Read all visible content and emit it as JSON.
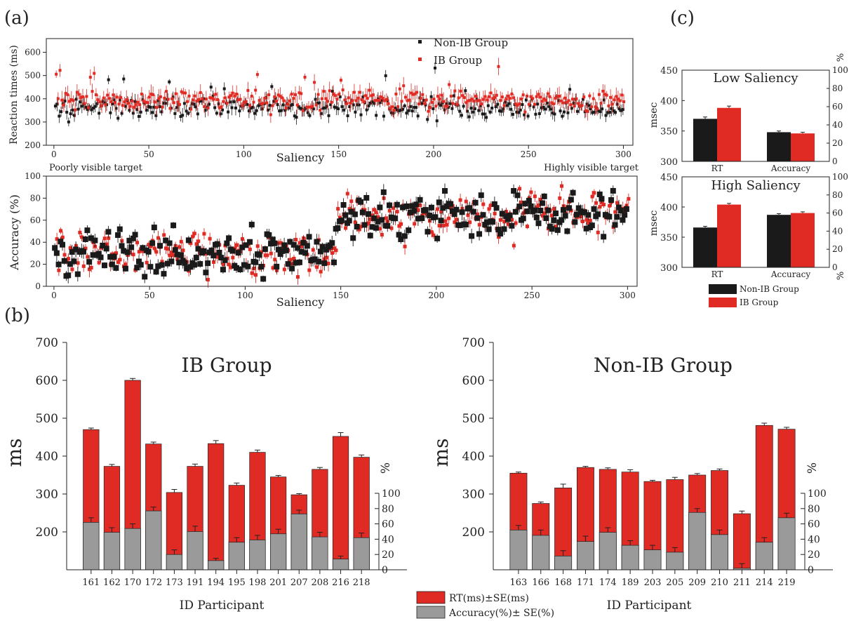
{
  "panel_labels": {
    "a": "(a)",
    "b": "(b)",
    "c": "(c)"
  },
  "colors": {
    "ib": "#e02b25",
    "non_ib": "#1a1a1a",
    "accuracy": "#9a9a9a",
    "rt": "#e02b25",
    "axis": "#222222"
  },
  "chart_data": [
    {
      "id": "a-top",
      "type": "scatter",
      "xlabel": "Saliency",
      "ylabel": "Reaction times (ms)",
      "xlim": [
        0,
        300
      ],
      "ylim": [
        200,
        650
      ],
      "xticks": [
        0,
        50,
        100,
        150,
        200,
        250,
        300
      ],
      "yticks": [
        200,
        300,
        400,
        500,
        600
      ],
      "annotations": {
        "left": "Poorly visible target",
        "right": "Highly visible target"
      },
      "legend": {
        "placement": "top-center",
        "entries": [
          "Non-IB Group",
          "IB Group"
        ]
      },
      "series": [
        {
          "name": "Non-IB Group",
          "color": "#1a1a1a",
          "n_points": 300,
          "mean": 365,
          "spread": 40,
          "err": 22
        },
        {
          "name": "IB Group",
          "color": "#e02b25",
          "n_points": 300,
          "mean": 395,
          "spread": 40,
          "err": 28
        }
      ]
    },
    {
      "id": "a-bottom",
      "type": "scatter",
      "xlabel": "Saliency",
      "ylabel": "Accuracy (%)",
      "xlim": [
        0,
        300
      ],
      "ylim": [
        0,
        100
      ],
      "xticks": [
        0,
        50,
        100,
        150,
        200,
        250,
        300
      ],
      "yticks": [
        0,
        20,
        40,
        60,
        80,
        100
      ],
      "series": [
        {
          "name": "Non-IB Group",
          "color": "#1a1a1a",
          "n_points": 300,
          "mean_low": 30,
          "mean_high": 62,
          "breakpoint": 148,
          "spread": 14,
          "err": 5
        },
        {
          "name": "IB Group",
          "color": "#e02b25",
          "n_points": 300,
          "mean_low": 30,
          "mean_high": 62,
          "breakpoint": 148,
          "spread": 14,
          "err": 5
        }
      ]
    },
    {
      "id": "b-left",
      "type": "bar",
      "title": "IB Group",
      "xlabel": "ID Participant",
      "ylabel": "ms",
      "ylabel_right": "%",
      "ylim": [
        100,
        700
      ],
      "yticks": [
        200,
        300,
        400,
        500,
        600,
        700
      ],
      "ylim_right": [
        0,
        200
      ],
      "yticks_right": [
        0,
        20,
        40,
        60,
        80,
        100
      ],
      "categories": [
        "161",
        "162",
        "170",
        "172",
        "173",
        "191",
        "194",
        "195",
        "198",
        "201",
        "207",
        "208",
        "216",
        "218"
      ],
      "series": [
        {
          "name": "RT(ms)±SE(ms)",
          "values": [
            470,
            373,
            600,
            432,
            304,
            373,
            433,
            323,
            410,
            345,
            298,
            365,
            452,
            397
          ],
          "errors": [
            4,
            5,
            5,
            5,
            8,
            6,
            8,
            6,
            6,
            4,
            3,
            5,
            10,
            6
          ]
        },
        {
          "name": "Accuracy(%)± SE(%)",
          "values": [
            62,
            49,
            54,
            77,
            20,
            50,
            12,
            36,
            39,
            47,
            73,
            43,
            14,
            42
          ],
          "errors": [
            6,
            6,
            6,
            5,
            6,
            7,
            3,
            6,
            6,
            6,
            5,
            6,
            4,
            6
          ]
        }
      ]
    },
    {
      "id": "b-right",
      "type": "bar",
      "title": "Non-IB Group",
      "xlabel": "ID Participant",
      "ylabel": "ms",
      "ylabel_right": "%",
      "ylim": [
        100,
        700
      ],
      "yticks": [
        200,
        300,
        400,
        500,
        600,
        700
      ],
      "ylim_right": [
        0,
        200
      ],
      "yticks_right": [
        0,
        20,
        40,
        60,
        80,
        100
      ],
      "categories": [
        "163",
        "166",
        "168",
        "171",
        "174",
        "189",
        "203",
        "205",
        "209",
        "210",
        "211",
        "214",
        "219"
      ],
      "series": [
        {
          "name": "RT(ms)±SE(ms)",
          "values": [
            355,
            275,
            316,
            370,
            365,
            358,
            333,
            338,
            350,
            362,
            248,
            481,
            471
          ],
          "errors": [
            3,
            4,
            10,
            3,
            4,
            6,
            3,
            6,
            4,
            4,
            7,
            6,
            5
          ]
        },
        {
          "name": "Accuracy(%)± SE(%)",
          "values": [
            52,
            45,
            18,
            37,
            49,
            32,
            26,
            23,
            75,
            46,
            2,
            36,
            68
          ],
          "errors": [
            6,
            7,
            7,
            7,
            6,
            6,
            6,
            6,
            5,
            6,
            6,
            6,
            6
          ]
        }
      ]
    },
    {
      "id": "c-low",
      "type": "bar",
      "title": "Low Saliency",
      "ylabel": "msec",
      "ylabel_right": "%",
      "ylim": [
        300,
        450
      ],
      "yticks": [
        300,
        350,
        400,
        450
      ],
      "ylim_right": [
        0,
        100
      ],
      "yticks_right": [
        0,
        20,
        40,
        60,
        80,
        100
      ],
      "categories": [
        "RT",
        "Accuracy"
      ],
      "series": [
        {
          "name": "Non-IB Group",
          "values": [
            370,
            348
          ],
          "errors": [
            3,
            2
          ]
        },
        {
          "name": "IB Group",
          "values": [
            388,
            346
          ],
          "errors": [
            3,
            2
          ]
        }
      ]
    },
    {
      "id": "c-high",
      "type": "bar",
      "title": "High Saliency",
      "ylabel": "msec",
      "ylabel_right": "%",
      "ylim": [
        300,
        450
      ],
      "yticks": [
        300,
        350,
        400,
        450
      ],
      "ylim_right": [
        0,
        100
      ],
      "yticks_right": [
        0,
        20,
        40,
        60,
        80,
        100
      ],
      "categories": [
        "RT",
        "Accuracy"
      ],
      "series": [
        {
          "name": "Non-IB Group",
          "values": [
            366,
            387
          ],
          "errors": [
            2,
            2
          ]
        },
        {
          "name": "IB Group",
          "values": [
            404,
            390
          ],
          "errors": [
            2,
            2
          ]
        }
      ],
      "legend": {
        "placement": "bottom",
        "entries": [
          "Non-IB Group",
          "IB Group"
        ]
      }
    }
  ],
  "bottom_legend": {
    "placement": "bottom-center",
    "entries": [
      "RT(ms)±SE(ms)",
      "Accuracy(%)± SE(%)"
    ]
  }
}
